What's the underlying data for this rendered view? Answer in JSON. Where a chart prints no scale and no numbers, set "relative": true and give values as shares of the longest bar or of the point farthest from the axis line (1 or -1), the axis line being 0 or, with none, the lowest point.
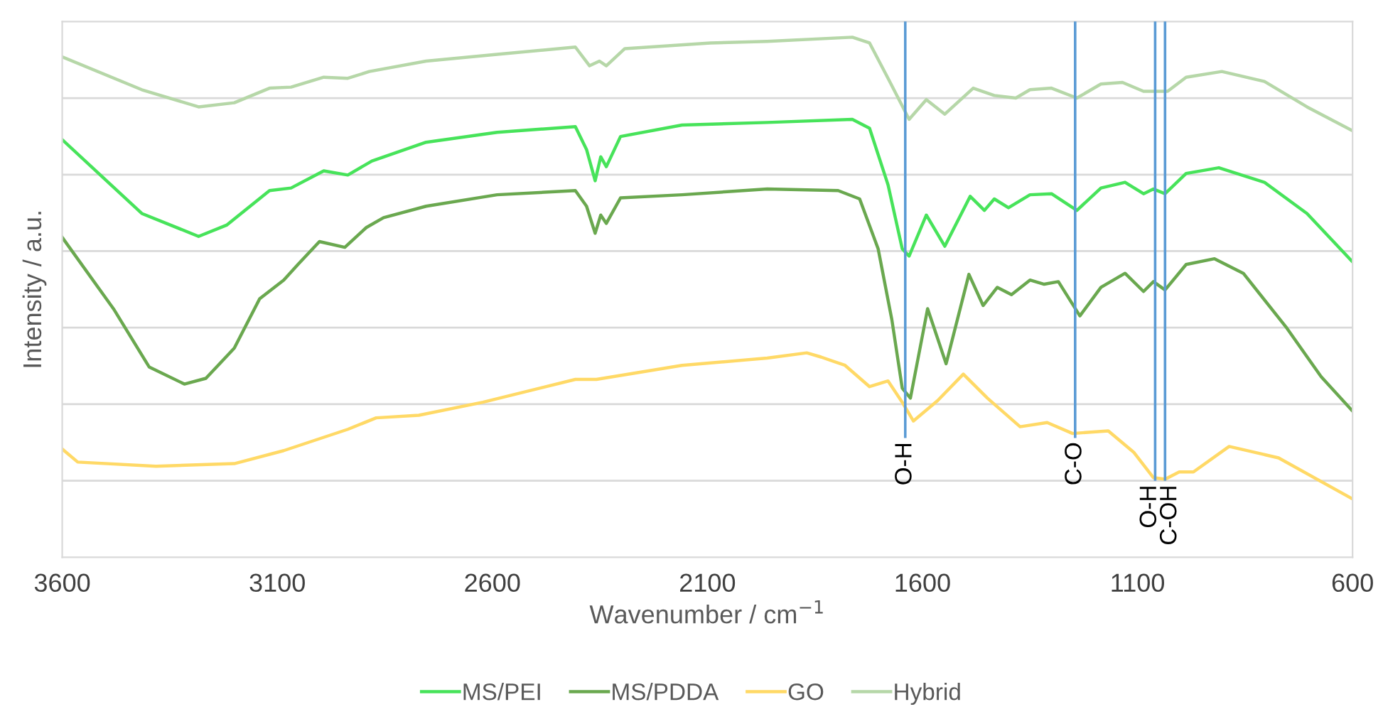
{
  "chart_data": {
    "type": "line",
    "relative": true,
    "xlabel": "Wavenumber / cm$^{−1}$",
    "ylabel": "Intensity / a.u.",
    "xlim": [
      3600,
      600
    ],
    "xticks": [
      3600,
      3100,
      2600,
      2100,
      1600,
      1100,
      600
    ],
    "grid": "y",
    "legend": "bottom",
    "line_style": "solid",
    "marker": "none",
    "series": [
      {
        "name": "MS/PEI",
        "color": "#47e35a",
        "x": [
          3600,
          3415,
          3283,
          3217,
          3118,
          3068,
          2992,
          2936,
          2880,
          2754,
          2589,
          2407,
          2381,
          2361,
          2348,
          2335,
          2302,
          2159,
          1961,
          1763,
          1723,
          1680,
          1647,
          1631,
          1591,
          1548,
          1489,
          1456,
          1433,
          1400,
          1350,
          1300,
          1241,
          1185,
          1129,
          1086,
          1063,
          1036,
          987,
          911,
          805,
          706,
          600
        ],
        "values": [
          0.803,
          0.661,
          0.617,
          0.639,
          0.705,
          0.71,
          0.743,
          0.735,
          0.762,
          0.798,
          0.817,
          0.828,
          0.784,
          0.724,
          0.77,
          0.751,
          0.809,
          0.831,
          0.836,
          0.842,
          0.825,
          0.716,
          0.593,
          0.579,
          0.658,
          0.598,
          0.694,
          0.667,
          0.689,
          0.672,
          0.697,
          0.699,
          0.667,
          0.71,
          0.721,
          0.699,
          0.708,
          0.699,
          0.738,
          0.749,
          0.721,
          0.661,
          0.568
        ]
      },
      {
        "name": "MS/PDDA",
        "color": "#6aa84f",
        "x": [
          3600,
          3481,
          3398,
          3316,
          3266,
          3200,
          3141,
          3085,
          3052,
          3002,
          2943,
          2893,
          2853,
          2754,
          2589,
          2407,
          2381,
          2361,
          2348,
          2335,
          2302,
          2159,
          1961,
          1796,
          1746,
          1703,
          1671,
          1647,
          1628,
          1588,
          1545,
          1492,
          1459,
          1426,
          1393,
          1350,
          1317,
          1284,
          1234,
          1185,
          1129,
          1086,
          1063,
          1036,
          987,
          921,
          854,
          755,
          673,
          600
        ],
        "values": [
          0.615,
          0.478,
          0.366,
          0.333,
          0.344,
          0.402,
          0.497,
          0.533,
          0.563,
          0.607,
          0.596,
          0.634,
          0.653,
          0.675,
          0.697,
          0.705,
          0.675,
          0.623,
          0.658,
          0.642,
          0.691,
          0.697,
          0.708,
          0.705,
          0.689,
          0.593,
          0.456,
          0.325,
          0.306,
          0.478,
          0.372,
          0.544,
          0.484,
          0.519,
          0.505,
          0.533,
          0.525,
          0.53,
          0.464,
          0.519,
          0.546,
          0.511,
          0.53,
          0.514,
          0.563,
          0.574,
          0.546,
          0.443,
          0.347,
          0.281
        ]
      },
      {
        "name": "GO",
        "color": "#ffd966",
        "x": [
          3600,
          3564,
          3382,
          3200,
          3085,
          2936,
          2870,
          2771,
          2622,
          2407,
          2358,
          2159,
          1961,
          1869,
          1836,
          1780,
          1723,
          1680,
          1647,
          1621,
          1565,
          1505,
          1449,
          1373,
          1310,
          1251,
          1168,
          1109,
          1063,
          1036,
          1003,
          970,
          887,
          772,
          600
        ],
        "values": [
          0.208,
          0.183,
          0.175,
          0.18,
          0.205,
          0.246,
          0.268,
          0.273,
          0.298,
          0.342,
          0.342,
          0.369,
          0.383,
          0.393,
          0.385,
          0.369,
          0.328,
          0.339,
          0.298,
          0.262,
          0.301,
          0.352,
          0.306,
          0.251,
          0.259,
          0.238,
          0.243,
          0.202,
          0.153,
          0.15,
          0.164,
          0.164,
          0.213,
          0.191,
          0.112
        ]
      },
      {
        "name": "Hybrid",
        "color": "#b6d7a8",
        "x": [
          3600,
          3415,
          3283,
          3200,
          3118,
          3068,
          2992,
          2936,
          2886,
          2754,
          2589,
          2407,
          2374,
          2351,
          2335,
          2292,
          2093,
          1961,
          1763,
          1723,
          1680,
          1631,
          1591,
          1548,
          1482,
          1433,
          1383,
          1350,
          1300,
          1241,
          1185,
          1135,
          1086,
          1030,
          987,
          904,
          805,
          706,
          600
        ],
        "values": [
          0.962,
          0.899,
          0.866,
          0.874,
          0.902,
          0.904,
          0.923,
          0.921,
          0.934,
          0.954,
          0.967,
          0.981,
          0.945,
          0.954,
          0.945,
          0.978,
          0.989,
          0.992,
          1.0,
          0.989,
          0.921,
          0.842,
          0.88,
          0.852,
          0.902,
          0.888,
          0.883,
          0.899,
          0.902,
          0.883,
          0.91,
          0.913,
          0.896,
          0.896,
          0.923,
          0.934,
          0.915,
          0.866,
          0.82
        ]
      }
    ],
    "ref_lines": [
      {
        "axis": "x",
        "value": 1640,
        "label": "O-H",
        "color": "#5b9bd5"
      },
      {
        "axis": "x",
        "value": 1245,
        "label": "C-O",
        "color": "#5b9bd5"
      },
      {
        "axis": "x",
        "value": 1059,
        "label": "O-H",
        "color": "#5b9bd5"
      },
      {
        "axis": "x",
        "value": 1036,
        "label": "C-OH",
        "color": "#5b9bd5"
      }
    ]
  }
}
